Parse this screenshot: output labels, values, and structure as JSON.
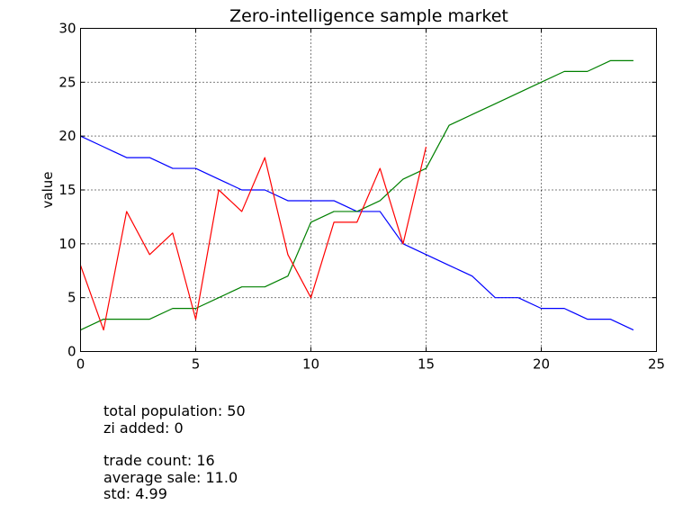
{
  "chart_data": {
    "type": "line",
    "title": "Zero-intelligence sample market",
    "xlabel": "",
    "ylabel": "value",
    "xlim": [
      0,
      25
    ],
    "ylim": [
      0,
      30
    ],
    "xticks": [
      0,
      5,
      10,
      15,
      20,
      25
    ],
    "yticks": [
      0,
      5,
      10,
      15,
      20,
      25,
      30
    ],
    "grid": true,
    "series": [
      {
        "color": "#0000ff",
        "x": [
          0,
          1,
          2,
          3,
          4,
          5,
          6,
          7,
          8,
          9,
          10,
          11,
          12,
          13,
          14,
          15,
          16,
          17,
          18,
          19,
          20,
          21,
          22,
          23,
          24
        ],
        "values": [
          20,
          19,
          18,
          18,
          17,
          17,
          16,
          15,
          15,
          14,
          14,
          14,
          13,
          13,
          10,
          9,
          8,
          7,
          5,
          5,
          4,
          4,
          3,
          3,
          2
        ]
      },
      {
        "color": "#008000",
        "x": [
          0,
          1,
          2,
          3,
          4,
          5,
          6,
          7,
          8,
          9,
          10,
          11,
          12,
          13,
          14,
          15,
          16,
          17,
          18,
          19,
          20,
          21,
          22,
          23,
          24
        ],
        "values": [
          2,
          3,
          3,
          3,
          4,
          4,
          5,
          6,
          6,
          7,
          12,
          13,
          13,
          14,
          16,
          17,
          21,
          22,
          23,
          24,
          25,
          26,
          26,
          27,
          27
        ]
      },
      {
        "color": "#ff0000",
        "x": [
          0,
          1,
          2,
          3,
          4,
          5,
          6,
          7,
          8,
          9,
          10,
          11,
          12,
          13,
          14,
          15
        ],
        "values": [
          8,
          2,
          13,
          9,
          11,
          3,
          15,
          13,
          18,
          9,
          5,
          12,
          12,
          17,
          10,
          19
        ]
      }
    ]
  },
  "stats": {
    "population": "total population: 50",
    "zi_added": "zi added: 0",
    "trade_count": "trade count: 16",
    "average_sale": "average sale: 11.0",
    "std": "std: 4.99"
  }
}
